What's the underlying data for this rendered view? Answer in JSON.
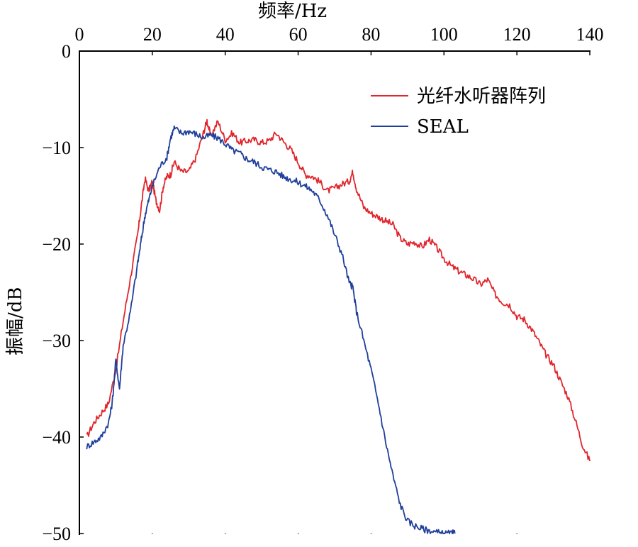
{
  "chart_data": {
    "type": "line",
    "title": "",
    "xlabel": "频率/Hz",
    "ylabel": "振幅/dB",
    "xlim": [
      0,
      140
    ],
    "ylim": [
      -50,
      0
    ],
    "x_ticks": [
      "0",
      "20",
      "40",
      "60",
      "80",
      "100",
      "120",
      "140"
    ],
    "y_ticks": [
      "0",
      "−10",
      "−20",
      "−30",
      "−40",
      "−50"
    ],
    "x_axis_position": "top",
    "grid": false,
    "legend_position": "top-right",
    "series": [
      {
        "name": "光纤水听器阵列",
        "color": "#e0262c",
        "x": [
          2,
          4,
          6,
          8,
          10,
          12,
          14,
          16,
          17,
          18,
          19,
          20,
          21,
          22,
          23,
          24,
          25,
          26,
          28,
          30,
          32,
          34,
          35,
          36,
          38,
          40,
          42,
          44,
          46,
          48,
          50,
          52,
          54,
          56,
          58,
          60,
          62,
          64,
          66,
          68,
          70,
          72,
          74,
          75,
          76,
          78,
          80,
          82,
          84,
          86,
          88,
          90,
          92,
          94,
          96,
          98,
          100,
          102,
          104,
          106,
          108,
          110,
          112,
          114,
          116,
          118,
          120,
          122,
          124,
          126,
          128,
          130,
          132,
          134,
          136,
          138,
          140
        ],
        "y": [
          -40,
          -38.5,
          -37.5,
          -36.5,
          -33,
          -28,
          -23.5,
          -19,
          -16,
          -13.2,
          -14.5,
          -13.5,
          -15.5,
          -16.5,
          -14,
          -13,
          -12.8,
          -11.5,
          -12.5,
          -12.5,
          -11,
          -8.5,
          -7.2,
          -8.8,
          -7.3,
          -9.2,
          -8.5,
          -9.5,
          -9.3,
          -9.2,
          -9.5,
          -9.3,
          -8.5,
          -9.4,
          -10.2,
          -11.5,
          -12.8,
          -13,
          -13.6,
          -14.5,
          -14.2,
          -13.8,
          -13.5,
          -12.5,
          -14.3,
          -16.2,
          -16.8,
          -17.2,
          -17.6,
          -18,
          -19.4,
          -20,
          -19.8,
          -20.3,
          -19.5,
          -20.4,
          -21.5,
          -22.3,
          -22.8,
          -23.2,
          -23.6,
          -24.2,
          -23.7,
          -25.2,
          -26,
          -26.3,
          -27.5,
          -27.8,
          -28.8,
          -30.1,
          -31.5,
          -32.5,
          -34.2,
          -35.8,
          -38.2,
          -40.8,
          -42.5
        ]
      },
      {
        "name": "SEAL",
        "color": "#1f3f9a",
        "x": [
          2,
          4,
          6,
          8,
          9,
          10,
          11,
          12,
          14,
          16,
          17,
          18,
          19,
          20,
          22,
          24,
          25,
          26,
          28,
          30,
          32,
          34,
          36,
          38,
          40,
          42,
          44,
          46,
          48,
          50,
          52,
          54,
          56,
          58,
          60,
          62,
          64,
          66,
          68,
          70,
          72,
          74,
          75,
          76,
          78,
          80,
          82,
          84,
          86,
          88,
          90,
          92,
          94,
          96,
          98,
          100,
          102,
          103
        ],
        "y": [
          -41,
          -40.5,
          -40,
          -38.5,
          -36.5,
          -32,
          -35,
          -30.5,
          -27,
          -22,
          -19.5,
          -17,
          -15.5,
          -14,
          -12,
          -11,
          -9,
          -8,
          -8.5,
          -8.3,
          -8.6,
          -9,
          -8.7,
          -9,
          -9.6,
          -10.3,
          -10.6,
          -11.2,
          -11.5,
          -12,
          -12.3,
          -12.5,
          -13,
          -13.3,
          -13.6,
          -14,
          -14.5,
          -15.5,
          -17,
          -19,
          -21,
          -24,
          -24.5,
          -27,
          -30,
          -33,
          -36.5,
          -40.5,
          -44,
          -47,
          -48.7,
          -49.2,
          -49.5,
          -49.7,
          -49.9,
          -50,
          -50,
          -50
        ]
      }
    ]
  }
}
